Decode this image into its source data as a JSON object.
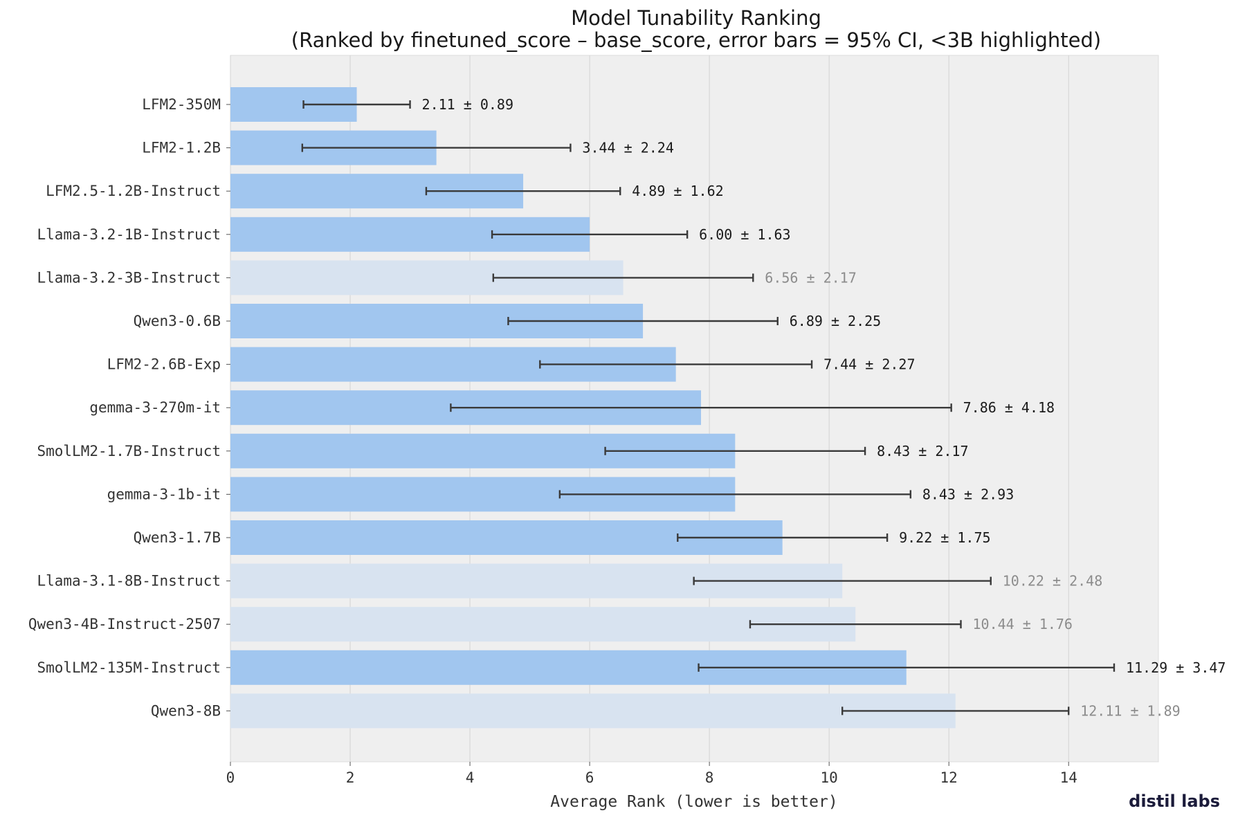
{
  "chart_data": {
    "type": "bar",
    "orientation": "horizontal",
    "title": "Model Tunability Ranking",
    "subtitle": "(Ranked by finetuned_score – base_score, error bars = 95% CI, <3B highlighted)",
    "xlabel": "Average Rank (lower is better)",
    "ylabel": "",
    "xlim": [
      0,
      15.5
    ],
    "xticks": [
      0,
      2,
      4,
      6,
      8,
      10,
      12,
      14
    ],
    "grid": "vertical",
    "categories": [
      "LFM2-350M",
      "LFM2-1.2B",
      "LFM2.5-1.2B-Instruct",
      "Llama-3.2-1B-Instruct",
      "Llama-3.2-3B-Instruct",
      "Qwen3-0.6B",
      "LFM2-2.6B-Exp",
      "gemma-3-270m-it",
      "SmolLM2-1.7B-Instruct",
      "gemma-3-1b-it",
      "Qwen3-1.7B",
      "Llama-3.1-8B-Instruct",
      "Qwen3-4B-Instruct-2507",
      "SmolLM2-135M-Instruct",
      "Qwen3-8B"
    ],
    "values": [
      2.11,
      3.44,
      4.89,
      6.0,
      6.56,
      6.89,
      7.44,
      7.86,
      8.43,
      8.43,
      9.22,
      10.22,
      10.44,
      11.29,
      12.11
    ],
    "errors": [
      0.89,
      2.24,
      1.62,
      1.63,
      2.17,
      2.25,
      2.27,
      4.18,
      2.17,
      2.93,
      1.75,
      2.48,
      1.76,
      3.47,
      1.89
    ],
    "highlighted": [
      true,
      true,
      true,
      true,
      false,
      true,
      true,
      true,
      true,
      true,
      true,
      false,
      false,
      true,
      false
    ],
    "labels": [
      "2.11 ± 0.89",
      "3.44 ± 2.24",
      "4.89 ± 1.62",
      "6.00 ± 1.63",
      "6.56 ± 2.17",
      "6.89 ± 2.25",
      "7.44 ± 2.27",
      "7.86 ± 4.18",
      "8.43 ± 2.17",
      "8.43 ± 2.93",
      "9.22 ± 1.75",
      "10.22 ± 2.48",
      "10.44 ± 1.76",
      "11.29 ± 3.47",
      "12.11 ± 1.89"
    ],
    "colors": {
      "highlighted_bar": "#a1c6ef",
      "other_bar": "#d8e3f0",
      "plot_background": "#efefef",
      "grid": "#d3d3d3",
      "error_bar": "#3a3a3a",
      "highlighted_label": "#1a1a1a",
      "other_label": "#8c8c8c"
    }
  },
  "branding": {
    "logo_text": "distil labs"
  }
}
